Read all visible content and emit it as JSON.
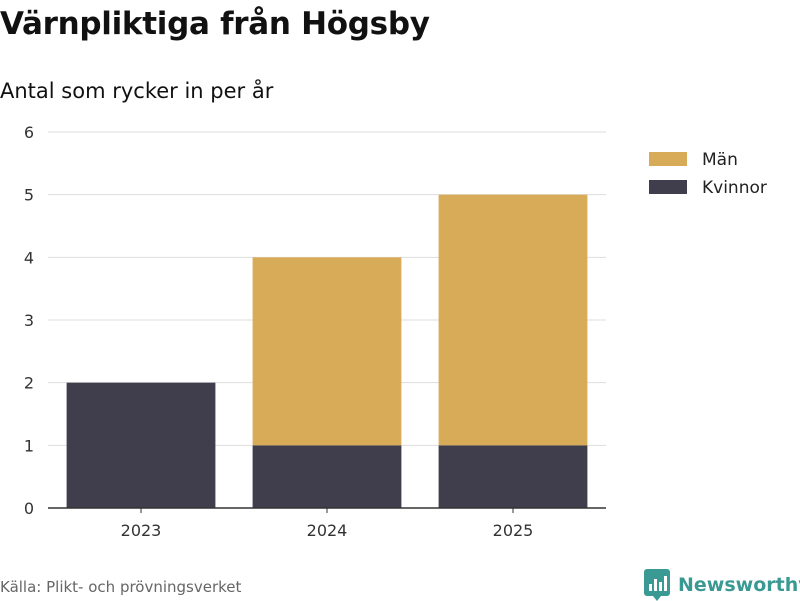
{
  "chart_data": {
    "type": "bar",
    "stacked": true,
    "title": "Värnpliktiga från Högsby",
    "subtitle": "Antal som rycker in per år",
    "categories": [
      "2023",
      "2024",
      "2025"
    ],
    "series": [
      {
        "name": "Kvinnor",
        "values": [
          2,
          1,
          1
        ],
        "color": "#403e4d"
      },
      {
        "name": "Män",
        "values": [
          0,
          3,
          4
        ],
        "color": "#d8ab58"
      }
    ],
    "legend_order": [
      "Män",
      "Kvinnor"
    ],
    "yticks": [
      0,
      1,
      2,
      3,
      4,
      5,
      6
    ],
    "ylim": [
      0,
      6
    ],
    "grid": true,
    "legend_position": "top-right",
    "xlabel": "",
    "ylabel": ""
  },
  "footer": {
    "source": "Källa: Plikt- och prövningsverket",
    "brand": "Newsworthy",
    "brand_color": "#3a9a93",
    "brand_icon": "newsworthy-logo-icon"
  }
}
